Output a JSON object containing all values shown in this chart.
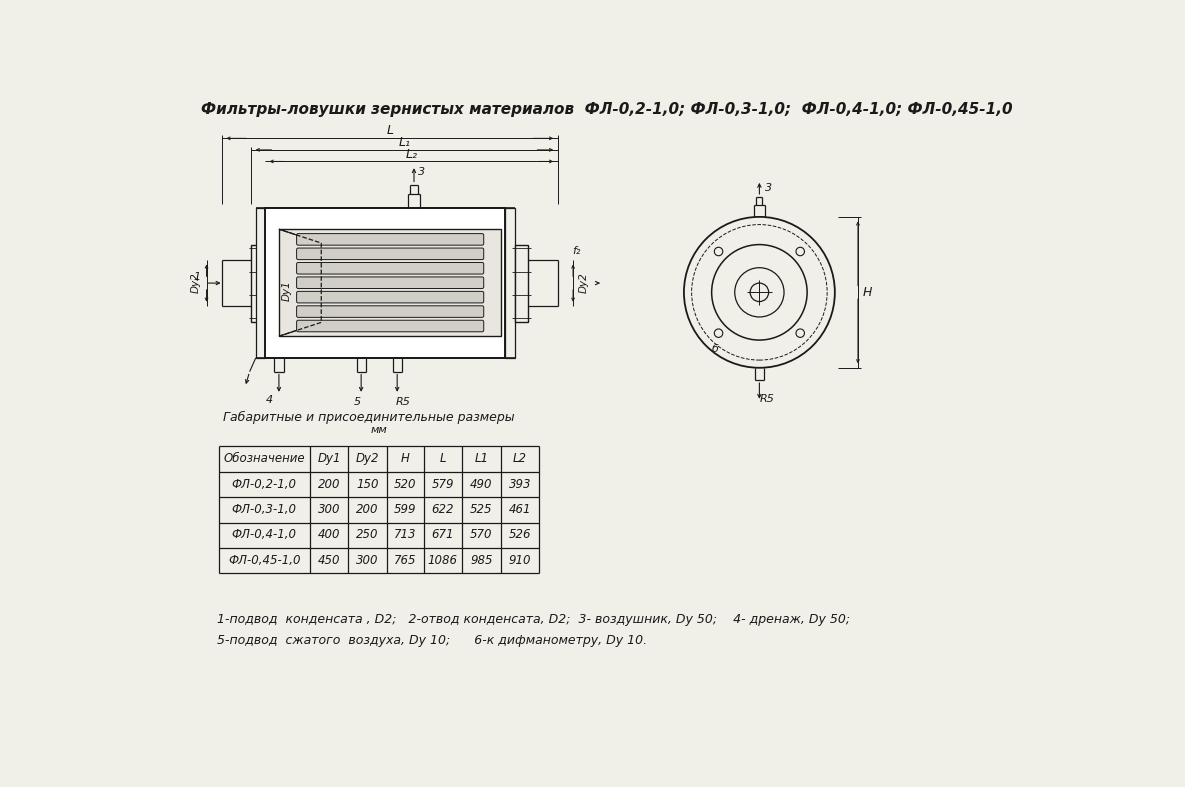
{
  "title": "Фильтры-ловушки зернистых материалов  ФЛ-0,2-1,0; ФЛ-0,3-1,0;  ФЛ-0,4-1,0; ФЛ-0,45-1,0",
  "table_title": "Габаритные и присоединительные размеры",
  "table_units": "мм",
  "col_headers": [
    "Обозначение",
    "Dy1",
    "Dy2",
    "H",
    "L",
    "L1",
    "L2"
  ],
  "rows": [
    [
      "ФЛ-0,2-1,0",
      "200",
      "150",
      "520",
      "579",
      "490",
      "393"
    ],
    [
      "ФЛ-0,3-1,0",
      "300",
      "200",
      "599",
      "622",
      "525",
      "461"
    ],
    [
      "ФЛ-0,4-1,0",
      "400",
      "250",
      "713",
      "671",
      "570",
      "526"
    ],
    [
      "ФЛ-0,45-1,0",
      "450",
      "300",
      "765",
      "1086",
      "985",
      "910"
    ]
  ],
  "footnote_line1": "1-подвод  конденсата , D2;   2-отвод конденсата, D2;  3- воздушник, Dy 50;    4- дренаж, Dy 50;",
  "footnote_line2": "5-подвод  сжатого  воздуха, Dy 10;      6-к дифманометру, Dy 10.",
  "bg_color": "#f0efe8",
  "line_color": "#1a1a1a",
  "text_color": "#1a1a1a"
}
